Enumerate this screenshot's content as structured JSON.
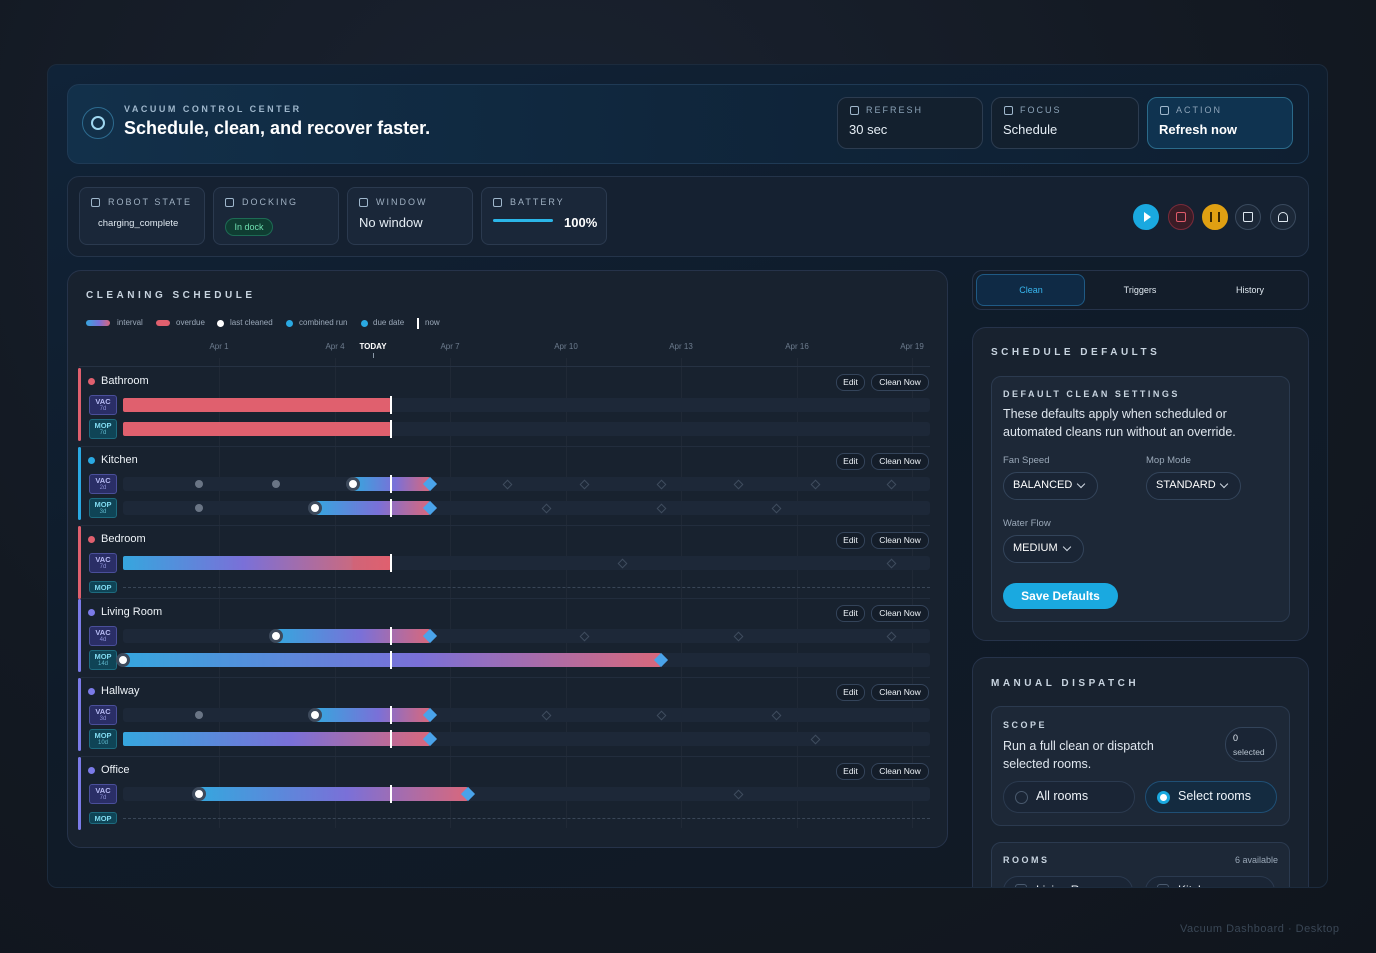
{
  "header": {
    "eyebrow": "VACUUM CONTROL CENTER",
    "title": "Schedule, clean, and recover faster.",
    "tiles": [
      {
        "label": "REFRESH",
        "value": "30 sec"
      },
      {
        "label": "FOCUS",
        "value": "Schedule"
      },
      {
        "label": "ACTION",
        "value": "Refresh now"
      }
    ]
  },
  "status": {
    "tiles": [
      {
        "label": "ROBOT STATE",
        "value": "charging_complete"
      },
      {
        "label": "DOCKING",
        "value": "In dock"
      },
      {
        "label": "WINDOW",
        "value": "No window"
      },
      {
        "label": "BATTERY",
        "value": "100%"
      }
    ]
  },
  "schedule": {
    "title": "CLEANING SCHEDULE",
    "legend": [
      "interval",
      "overdue",
      "last cleaned",
      "combined run",
      "due date",
      "now"
    ],
    "dates": [
      "Apr 1",
      "Apr 4",
      "TODAY",
      "Apr 7",
      "Apr 10",
      "Apr 13",
      "Apr 16",
      "Apr 19"
    ],
    "rooms": [
      {
        "name": "Bathroom",
        "color": "#e0606e",
        "edit": "Edit",
        "action": "Clean Now",
        "rows": [
          {
            "tag": "VAC",
            "interval": "7d"
          },
          {
            "tag": "MOP",
            "interval": "7d"
          }
        ]
      },
      {
        "name": "Kitchen",
        "color": "#2aa9e2",
        "edit": "Edit",
        "action": "Clean Now",
        "rows": [
          {
            "tag": "VAC",
            "interval": "2d"
          },
          {
            "tag": "MOP",
            "interval": "3d"
          }
        ]
      },
      {
        "name": "Bedroom",
        "color": "#e0606e",
        "edit": "Edit",
        "action": "Clean Now",
        "rows": [
          {
            "tag": "VAC",
            "interval": "7d"
          },
          {
            "tag": "MOP"
          }
        ]
      },
      {
        "name": "Living Room",
        "color": "#7b7be8",
        "edit": "Edit",
        "action": "Clean Now",
        "rows": [
          {
            "tag": "VAC",
            "interval": "4d"
          },
          {
            "tag": "MOP",
            "interval": "14d"
          }
        ]
      },
      {
        "name": "Hallway",
        "color": "#7b7be8",
        "edit": "Edit",
        "action": "Clean Now",
        "rows": [
          {
            "tag": "VAC",
            "interval": "3d"
          },
          {
            "tag": "MOP",
            "interval": "10d"
          }
        ]
      },
      {
        "name": "Office",
        "color": "#7b7be8",
        "edit": "Edit",
        "action": "Clean Now",
        "rows": [
          {
            "tag": "VAC",
            "interval": "7d"
          },
          {
            "tag": "MOP"
          }
        ]
      }
    ]
  },
  "tabs": [
    "Clean",
    "Triggers",
    "History"
  ],
  "defaults": {
    "title": "SCHEDULE DEFAULTS",
    "card_title": "DEFAULT CLEAN SETTINGS",
    "description": "These defaults apply when scheduled or automated cleans run without an override.",
    "fields": [
      {
        "label": "Fan Speed",
        "value": "BALANCED"
      },
      {
        "label": "Mop Mode",
        "value": "STANDARD"
      },
      {
        "label": "Water Flow",
        "value": "MEDIUM"
      }
    ],
    "button": "Save Defaults"
  },
  "dispatch": {
    "title": "MANUAL DISPATCH",
    "scope_title": "SCOPE",
    "description": "Run a full clean or dispatch selected rooms.",
    "badge_count": "0",
    "badge_label": "selected",
    "options": [
      "All rooms",
      "Select rooms"
    ],
    "rooms_title": "ROOMS",
    "rooms_count": "6 available",
    "rooms": [
      "Living Room",
      "Kitchen"
    ]
  },
  "footer": "Vacuum Dashboard · Desktop"
}
